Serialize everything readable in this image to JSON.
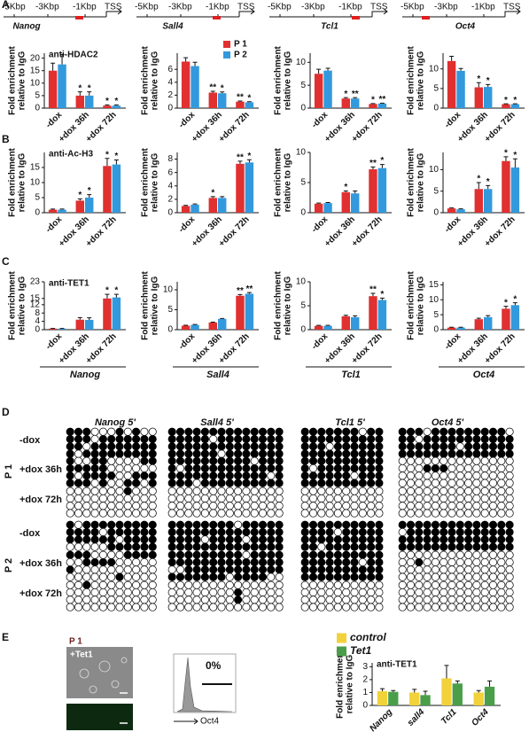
{
  "panel_labels": [
    "A",
    "B",
    "C",
    "D",
    "E"
  ],
  "gene_maps": [
    {
      "labels": [
        "-5Kbp",
        "-3Kbp",
        "-1Kbp",
        "TSS"
      ],
      "gene": "Nanog"
    },
    {
      "labels": [
        "-5Kbp",
        "-3Kbp",
        "-1Kbp",
        "TSS"
      ],
      "gene": "Sall4"
    },
    {
      "labels": [
        "-5Kbp",
        "-3Kbp",
        "-1Kbp",
        "TSS"
      ],
      "gene": "Tcl1"
    },
    {
      "labels": [
        "-5Kbp",
        "-3Kbp",
        "-1Kbp",
        "TSS"
      ],
      "gene": "Oct4"
    }
  ],
  "chart_data": [
    {
      "type": "bar",
      "title": "anti-HDAC2",
      "y_label": [
        "Fold enrichment",
        "relative to IgG"
      ],
      "categories": [
        "-dox",
        "+dox 36h",
        "+dox 72h"
      ],
      "ylim": [
        0,
        22
      ],
      "yticks": [
        0,
        5,
        10,
        15,
        20
      ],
      "series": [
        {
          "color": "#e03030",
          "values": [
            15,
            5,
            1
          ],
          "errors": [
            3,
            1.5,
            0.3
          ],
          "stars": [
            null,
            "*",
            "*"
          ]
        },
        {
          "color": "#3399dd",
          "values": [
            17.5,
            5,
            1
          ],
          "errors": [
            4,
            1.5,
            0.3
          ],
          "stars": [
            null,
            "*",
            "*"
          ]
        }
      ]
    },
    {
      "type": "bar",
      "y_label": [
        "Fold enrichment",
        "relative to IgG"
      ],
      "categories": [
        "-dox",
        "+dox 36h",
        "+dox 72h"
      ],
      "ylim": [
        0,
        8.5
      ],
      "yticks": [
        0,
        2,
        4,
        6
      ],
      "legend": "top-right",
      "series": [
        {
          "name": "P 1",
          "color": "#e03030",
          "values": [
            7.2,
            2.4,
            1.0
          ],
          "errors": [
            0.6,
            0.2,
            0.1
          ],
          "stars": [
            null,
            "**",
            "**"
          ]
        },
        {
          "name": "P 2",
          "color": "#3399dd",
          "values": [
            6.5,
            2.3,
            0.9
          ],
          "errors": [
            0.6,
            0.2,
            0.1
          ],
          "stars": [
            null,
            "*",
            "*"
          ]
        }
      ]
    },
    {
      "type": "bar",
      "y_label": [
        "Fold enrichment",
        "relative to IgG"
      ],
      "categories": [
        "-dox",
        "+dox 36h",
        "+dox 72h"
      ],
      "ylim": [
        0,
        12
      ],
      "yticks": [
        0,
        5,
        10
      ],
      "series": [
        {
          "color": "#e03030",
          "values": [
            7.5,
            2.1,
            0.9
          ],
          "errors": [
            1.0,
            0.2,
            0.1
          ],
          "stars": [
            null,
            "*",
            "*"
          ]
        },
        {
          "color": "#3399dd",
          "values": [
            8.2,
            2.1,
            1.0
          ],
          "errors": [
            0.5,
            0.2,
            0.1
          ],
          "stars": [
            null,
            "**",
            "**"
          ]
        }
      ]
    },
    {
      "type": "bar",
      "y_label": [
        "Fold enrichment",
        "relative to IgG"
      ],
      "categories": [
        "-dox",
        "+dox 36h",
        "+dox 72h"
      ],
      "ylim": [
        0,
        14
      ],
      "yticks": [
        0,
        5,
        10
      ],
      "series": [
        {
          "color": "#e03030",
          "values": [
            12,
            5.3,
            1.0
          ],
          "errors": [
            1.2,
            1.2,
            0.1
          ],
          "stars": [
            null,
            "*",
            "*"
          ]
        },
        {
          "color": "#3399dd",
          "values": [
            9.5,
            5.4,
            1.0
          ],
          "errors": [
            0.6,
            0.6,
            0.1
          ],
          "stars": [
            null,
            "*",
            "*"
          ]
        }
      ]
    },
    {
      "type": "bar",
      "title": "anti-Ac-H3",
      "y_label": [
        "Fold enrichment",
        "relative to IgG"
      ],
      "categories": [
        "-dox",
        "+dox 36h",
        "+dox 72h"
      ],
      "ylim": [
        0,
        20
      ],
      "yticks": [
        0,
        5,
        10,
        15
      ],
      "series": [
        {
          "color": "#e03030",
          "values": [
            1,
            4,
            15.5
          ],
          "errors": [
            0.2,
            0.6,
            2.5
          ],
          "stars": [
            null,
            "*",
            "*"
          ]
        },
        {
          "color": "#3399dd",
          "values": [
            1,
            5,
            16
          ],
          "errors": [
            0.2,
            1.0,
            1.5
          ],
          "stars": [
            null,
            "*",
            "*"
          ]
        }
      ]
    },
    {
      "type": "bar",
      "y_label": [
        "Fold enrichment",
        "relative to IgG"
      ],
      "categories": [
        "-dox",
        "+dox 36h",
        "+dox 72h"
      ],
      "ylim": [
        0,
        9
      ],
      "yticks": [
        0,
        2,
        4,
        6,
        8
      ],
      "series": [
        {
          "color": "#e03030",
          "values": [
            1,
            2.2,
            7.3
          ],
          "errors": [
            0.1,
            0.2,
            0.4
          ],
          "stars": [
            null,
            "*",
            "**"
          ]
        },
        {
          "color": "#3399dd",
          "values": [
            1.2,
            2.2,
            7.5
          ],
          "errors": [
            0.1,
            0.2,
            0.4
          ],
          "stars": [
            null,
            null,
            "*"
          ]
        }
      ]
    },
    {
      "type": "bar",
      "y_label": [
        "Fold enrichment",
        "relative to IgG"
      ],
      "categories": [
        "-dox",
        "+dox 36h",
        "+dox 72h"
      ],
      "ylim": [
        0,
        10
      ],
      "yticks": [
        0,
        5,
        10
      ],
      "series": [
        {
          "color": "#e03030",
          "values": [
            1.5,
            3.4,
            7.2
          ],
          "errors": [
            0.1,
            0.2,
            0.4
          ],
          "stars": [
            null,
            "*",
            "**"
          ]
        },
        {
          "color": "#3399dd",
          "values": [
            1.6,
            3.2,
            7.4
          ],
          "errors": [
            0.1,
            0.4,
            0.6
          ],
          "stars": [
            null,
            null,
            "*"
          ]
        }
      ]
    },
    {
      "type": "bar",
      "y_label": [
        "Fold enrichment",
        "relative to IgG"
      ],
      "categories": [
        "-dox",
        "+dox 36h",
        "+dox 72h"
      ],
      "ylim": [
        0,
        14
      ],
      "yticks": [
        0,
        5,
        10
      ],
      "series": [
        {
          "color": "#e03030",
          "values": [
            1,
            5.5,
            12
          ],
          "errors": [
            0.1,
            1.5,
            1.0
          ],
          "stars": [
            null,
            "*",
            "*"
          ]
        },
        {
          "color": "#3399dd",
          "values": [
            0.8,
            5.5,
            10.5
          ],
          "errors": [
            0.1,
            0.8,
            2.0
          ],
          "stars": [
            null,
            "*",
            "*"
          ]
        }
      ]
    },
    {
      "type": "bar",
      "title": "anti-TET1",
      "y_label": [
        "Fold enrichment",
        "relative to IgG"
      ],
      "categories": [
        "-dox",
        "+dox 36h",
        "+dox 72h"
      ],
      "ylim": [
        0,
        23
      ],
      "yticks": [
        0,
        4,
        8,
        12,
        15,
        23
      ],
      "group_label": "Nanog",
      "series": [
        {
          "color": "#e03030",
          "values": [
            0.5,
            4.8,
            15
          ],
          "errors": [
            0.1,
            1.0,
            2.0
          ],
          "stars": [
            null,
            null,
            "*"
          ]
        },
        {
          "color": "#3399dd",
          "values": [
            0.5,
            4.7,
            15.5
          ],
          "errors": [
            0.1,
            1.0,
            1.5
          ],
          "stars": [
            null,
            null,
            "*"
          ]
        }
      ]
    },
    {
      "type": "bar",
      "y_label": [
        "Fold enrichment",
        "relative to IgG"
      ],
      "categories": [
        "-dox",
        "+dox 36h",
        "+dox 72h"
      ],
      "ylim": [
        0,
        12
      ],
      "yticks": [
        0,
        5,
        10
      ],
      "group_label": "Sall4",
      "series": [
        {
          "color": "#e03030",
          "values": [
            1,
            1.8,
            8.5
          ],
          "errors": [
            0.1,
            0.1,
            0.3
          ],
          "stars": [
            null,
            null,
            "**"
          ]
        },
        {
          "color": "#3399dd",
          "values": [
            1.2,
            2.7,
            9
          ],
          "errors": [
            0.1,
            0.1,
            0.3
          ],
          "stars": [
            null,
            null,
            "**"
          ]
        }
      ]
    },
    {
      "type": "bar",
      "y_label": [
        "Fold enrichment",
        "relative to IgG"
      ],
      "categories": [
        "-dox",
        "+dox 36h",
        "+dox 72h"
      ],
      "ylim": [
        0,
        10
      ],
      "yticks": [
        0,
        5,
        10
      ],
      "group_label": "Tcl1",
      "series": [
        {
          "color": "#e03030",
          "values": [
            0.8,
            2.8,
            7
          ],
          "errors": [
            0.1,
            0.2,
            0.6
          ],
          "stars": [
            null,
            null,
            "**"
          ]
        },
        {
          "color": "#3399dd",
          "values": [
            0.8,
            2.6,
            6.2
          ],
          "errors": [
            0.1,
            0.3,
            0.4
          ],
          "stars": [
            null,
            null,
            "*"
          ]
        }
      ]
    },
    {
      "type": "bar",
      "y_label": [
        "Fold enrichment",
        "relative to IgG"
      ],
      "categories": [
        "-dox",
        "+dox 36h",
        "+dox 72h"
      ],
      "ylim": [
        0,
        16
      ],
      "yticks": [
        0,
        5,
        10,
        15
      ],
      "group_label": "Oct4",
      "series": [
        {
          "color": "#e03030",
          "values": [
            0.7,
            3.5,
            7
          ],
          "errors": [
            0.1,
            0.3,
            0.8
          ],
          "stars": [
            null,
            null,
            "*"
          ]
        },
        {
          "color": "#3399dd",
          "values": [
            0.7,
            4.2,
            8.2
          ],
          "errors": [
            0.1,
            0.5,
            0.8
          ],
          "stars": [
            null,
            null,
            "*"
          ]
        }
      ]
    },
    {
      "type": "bar",
      "title": "anti-TET1",
      "y_label": [
        "Fold enrichment",
        "relative to IgG"
      ],
      "categories": [
        "Nanog",
        "sall4",
        "Tcl1",
        "Oct4"
      ],
      "ylim": [
        0,
        3.3
      ],
      "yticks": [
        0,
        1,
        2,
        3
      ],
      "legend": "top",
      "series": [
        {
          "name": "control",
          "color": "#f2d23a",
          "values": [
            1.1,
            1.0,
            2.1,
            1.0
          ],
          "errors": [
            0.2,
            0.25,
            1.0,
            0.15
          ]
        },
        {
          "name": "Tet1",
          "color": "#4a9e4a",
          "values": [
            1.05,
            0.8,
            1.7,
            1.45
          ],
          "errors": [
            0.1,
            0.3,
            0.2,
            0.45
          ]
        }
      ]
    }
  ],
  "methylation": {
    "patients": [
      {
        "label": "P 1",
        "conditions": [
          "-dox",
          "+dox 36h",
          "+dox 72h"
        ]
      },
      {
        "label": "P 2",
        "conditions": [
          "-dox",
          "+dox 36h",
          "+dox 72h"
        ]
      }
    ],
    "genes": [
      {
        "name": "Nanog 5'",
        "blocks": [
          [
            "11100010100",
            "11101111111",
            "11011111111",
            "10111111111"
          ],
          [
            "10011000011",
            "11111000000",
            "10111100111",
            "11101001101"
          ],
          [
            "00000001000",
            "00000000000",
            "00000000000",
            "00000000000"
          ],
          [
            "10111111111",
            "11110111111",
            "11111101111",
            "00000111111"
          ],
          [
            "11100001111",
            "00111100000",
            "10000000000",
            "00000010000"
          ],
          [
            "00100000000",
            "00000000000",
            "00000000000",
            "00000000000"
          ]
        ]
      },
      {
        "name": "Sall4 5'",
        "blocks": [
          [
            "11111111111111",
            "11111011111111",
            "11111111111111",
            "11111101111111"
          ],
          [
            "11111111110111",
            "10111111111111",
            "11111111111101",
            "11101111111111"
          ],
          [
            "00000000000000",
            "00000000000000",
            "00000000000000",
            "00000000000000"
          ],
          [
            "11111111011111",
            "11111111111111",
            "11110111101111",
            "11111111111111"
          ],
          [
            "11111111101111",
            "11111111111111",
            "00111111111111",
            "11111110111100"
          ],
          [
            "00000000000000",
            "00000000100000",
            "00000000100000",
            "00000000000000"
          ]
        ]
      },
      {
        "name": "Tcl1 5'",
        "blocks": [
          [
            "1111111011",
            "1111111111",
            "1110111111",
            "1111111111"
          ],
          [
            "1111111111",
            "1011111111",
            "1111110111",
            "1111111111"
          ],
          [
            "0000000000",
            "0000000000",
            "0000000000",
            "0000000000"
          ],
          [
            "1111111111",
            "1111011111",
            "1111111111",
            "1101111111"
          ],
          [
            "1111111111",
            "1111111011",
            "1111111111",
            "1111111111"
          ],
          [
            "0000000000",
            "0000000000",
            "0000000000",
            "0000000000"
          ]
        ]
      },
      {
        "name": "Oct4 5'",
        "blocks": [
          [
            "11101111111110",
            "11011111111111",
            "11111110111111",
            "11111111111111"
          ],
          [
            "00000000000000",
            "00011100000000",
            "00000000000000",
            "00000000000000"
          ],
          [
            "00000000000000",
            "00000000000000",
            "00000000000000",
            "00000000000000"
          ],
          [
            "11111111111111",
            "01111111111111",
            "11111111111111",
            "11111111111111"
          ],
          [
            "00000000000000",
            "00100000000000",
            "00000000000000",
            "00000000000000"
          ],
          [
            "00000000000000",
            "00000000000000",
            "00000000000000",
            "00000000000000"
          ]
        ]
      }
    ]
  },
  "panel_e": {
    "cell_line": "P 1",
    "construct": "+Tet1",
    "flow_percent": "0%",
    "flow_axis": "Oct4"
  }
}
